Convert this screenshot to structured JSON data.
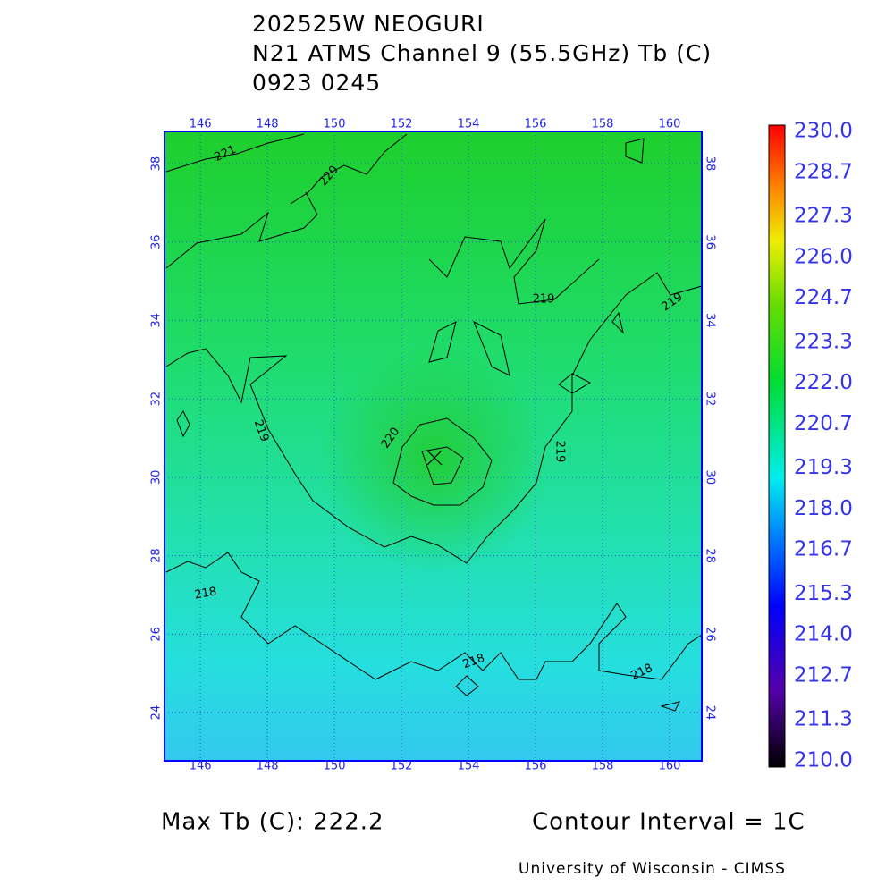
{
  "title_lines": [
    "202525W NEOGURI",
    "N21 ATMS Channel 9 (55.5GHz) Tb (C)",
    "0923 0245"
  ],
  "map": {
    "xlim": [
      144.93,
      160.96
    ],
    "ylim": [
      22.77,
      38.82
    ],
    "xticks": [
      146,
      148,
      150,
      152,
      154,
      156,
      158,
      160
    ],
    "yticks": [
      24,
      26,
      28,
      30,
      32,
      34,
      36,
      38
    ],
    "grid": true,
    "contour_labels": [
      221,
      220,
      219,
      219,
      219,
      219,
      220,
      218,
      218,
      218
    ]
  },
  "colorbar": {
    "lim": [
      210,
      230
    ],
    "ticks": [
      {
        "value": 210,
        "label": "210.0"
      },
      {
        "value": 211.3,
        "label": "211.3"
      },
      {
        "value": 212.7,
        "label": "212.7"
      },
      {
        "value": 214,
        "label": "214.0"
      },
      {
        "value": 215.3,
        "label": "215.3"
      },
      {
        "value": 216.7,
        "label": "216.7"
      },
      {
        "value": 218,
        "label": "218.0"
      },
      {
        "value": 219.3,
        "label": "219.3"
      },
      {
        "value": 220.7,
        "label": "220.7"
      },
      {
        "value": 222,
        "label": "222.0"
      },
      {
        "value": 223.3,
        "label": "223.3"
      },
      {
        "value": 224.7,
        "label": "224.7"
      },
      {
        "value": 226,
        "label": "226.0"
      },
      {
        "value": 227.3,
        "label": "227.3"
      },
      {
        "value": 228.7,
        "label": "228.7"
      },
      {
        "value": 230,
        "label": "230.0"
      }
    ]
  },
  "footer": {
    "max_tb": "Max Tb (C): 222.2",
    "contour_interval": "Contour Interval = 1C",
    "credit": "University of Wisconsin - CIMSS"
  }
}
